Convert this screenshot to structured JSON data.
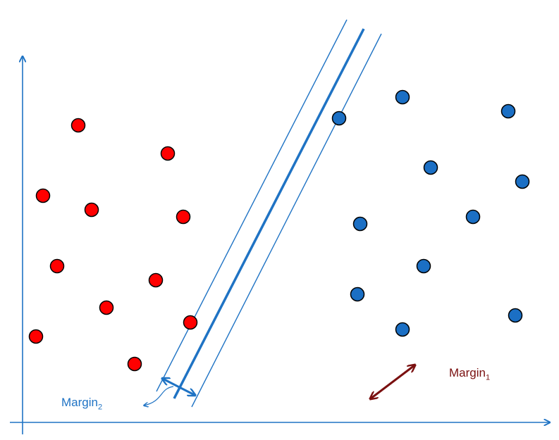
{
  "colors": {
    "axis": "#1f73c4",
    "class_red_fill": "#ff0000",
    "class_blue_fill": "#1b6fc4",
    "point_stroke": "#000000",
    "margin1_color": "#7a1010",
    "margin2_color": "#1f73c4"
  },
  "labels": {
    "margin1_text": "Margin",
    "margin1_sub": "1",
    "margin2_text": "Margin",
    "margin2_sub": "2"
  }
}
